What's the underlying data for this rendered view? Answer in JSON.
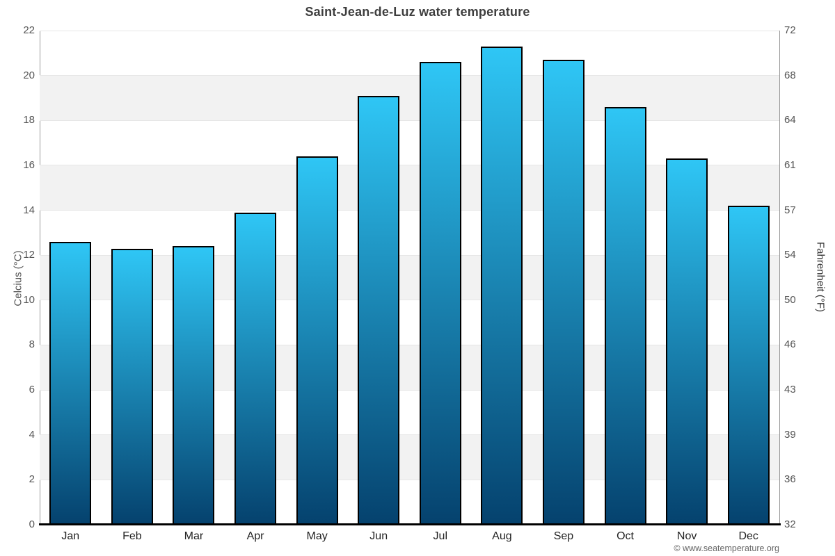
{
  "credit": "© www.seatemperature.org",
  "chart_data": {
    "type": "bar",
    "title": "Saint-Jean-de-Luz water temperature",
    "categories": [
      "Jan",
      "Feb",
      "Mar",
      "Apr",
      "May",
      "Jun",
      "Jul",
      "Aug",
      "Sep",
      "Oct",
      "Nov",
      "Dec"
    ],
    "values": [
      12.6,
      12.3,
      12.4,
      13.9,
      16.4,
      19.1,
      20.6,
      21.3,
      20.7,
      18.6,
      16.3,
      14.2
    ],
    "ylabel_left": "Celcius (°C)",
    "ylabel_right": "Fahrenheit (°F)",
    "ylim": [
      0,
      22
    ],
    "ytick_step": 2,
    "yticks_left": [
      "0",
      "2",
      "4",
      "6",
      "8",
      "10",
      "12",
      "14",
      "16",
      "18",
      "20",
      "22"
    ],
    "yticks_right": [
      "32",
      "36",
      "39",
      "43",
      "46",
      "50",
      "54",
      "57",
      "61",
      "64",
      "68",
      "72"
    ],
    "legend": false,
    "grid": "gridlines every 2°C with alternating gray bands",
    "colors": {
      "bar_gradient_top": "#2fc6f5",
      "bar_gradient_bottom": "#05426e",
      "bar_border": "#000000",
      "band_fill": "#f2f2f2",
      "gridline": "#e6e6e6",
      "axis_line": "#999999",
      "baseline": "#000000",
      "title_color": "#3e3e3e",
      "tick_label_color": "#555555",
      "month_label_color": "#222222",
      "credit_color": "#666666"
    }
  }
}
